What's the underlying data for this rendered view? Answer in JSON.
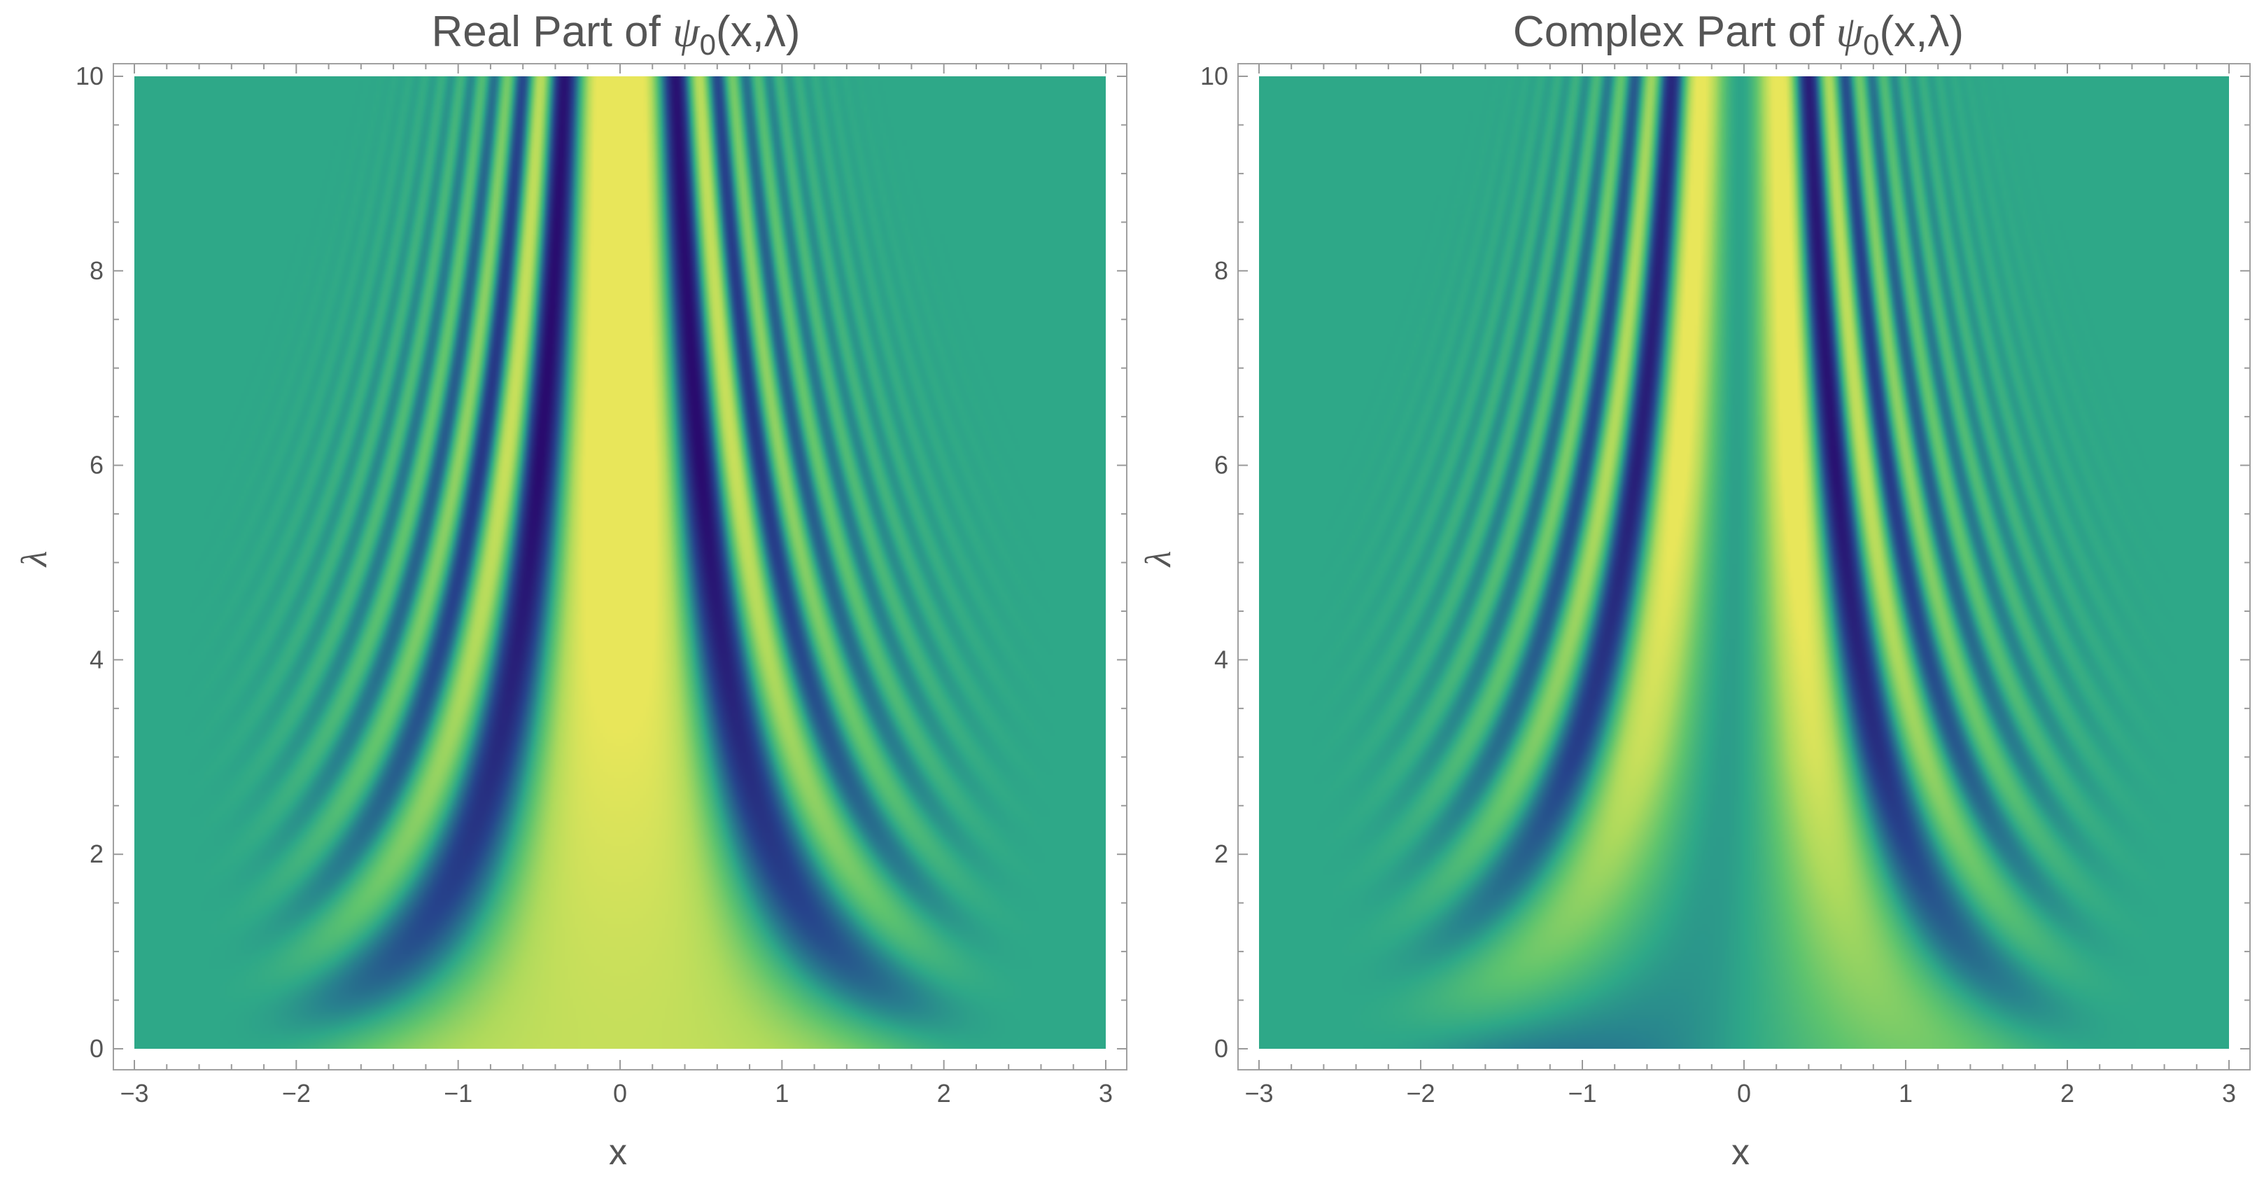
{
  "chart_data": [
    {
      "type": "heatmap",
      "id": "real",
      "title_prefix": "Real Part of ",
      "title_symbol": "ψ",
      "title_subscript": "0",
      "title_suffix": "(x,λ)",
      "xlabel": "x",
      "ylabel": "λ",
      "xlim": [
        -3,
        3
      ],
      "ylim": [
        0,
        10
      ],
      "x_ticks": [
        -3,
        -2,
        -1,
        0,
        1,
        2,
        3
      ],
      "x_tick_labels": [
        "−3",
        "−2",
        "−1",
        "0",
        "1",
        "2",
        "3"
      ],
      "y_ticks": [
        0,
        2,
        4,
        6,
        8,
        10
      ],
      "y_tick_labels": [
        "0",
        "2",
        "4",
        "6",
        "8",
        "10"
      ],
      "function": "Re psi0(x, lambda)",
      "colormap": [
        "#290b6e",
        "#2e9a88",
        "#e8e65a"
      ],
      "background_color": "#2ea888",
      "grid": false
    },
    {
      "type": "heatmap",
      "id": "imag",
      "title_prefix": "Complex Part of ",
      "title_symbol": "ψ",
      "title_subscript": "0",
      "title_suffix": "(x,λ)",
      "xlabel": "x",
      "ylabel": "λ",
      "xlim": [
        -3,
        3
      ],
      "ylim": [
        0,
        10
      ],
      "x_ticks": [
        -3,
        -2,
        -1,
        0,
        1,
        2,
        3
      ],
      "x_tick_labels": [
        "−3",
        "−2",
        "−1",
        "0",
        "1",
        "2",
        "3"
      ],
      "y_ticks": [
        0,
        2,
        4,
        6,
        8,
        10
      ],
      "y_tick_labels": [
        "0",
        "2",
        "4",
        "6",
        "8",
        "10"
      ],
      "function": "Im psi0(x, lambda)",
      "colormap": [
        "#290b6e",
        "#2e9a88",
        "#e8e65a"
      ],
      "background_color": "#2ea888",
      "grid": false
    }
  ]
}
